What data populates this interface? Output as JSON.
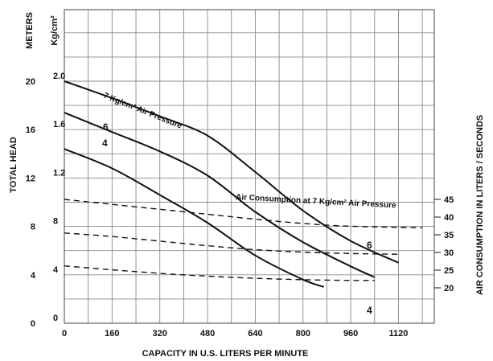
{
  "chart_data": {
    "type": "line",
    "xlabel": "CAPACITY IN U.S. LITERS PER MINUTE",
    "x_ticks": [
      0,
      160,
      320,
      480,
      640,
      800,
      960,
      1120
    ],
    "xlim": [
      0,
      1240
    ],
    "left_axis_meters": {
      "unit_label": "METERS",
      "title": "TOTAL HEAD",
      "ticks": [
        0,
        4,
        8,
        12,
        16,
        20
      ],
      "range": [
        0,
        20
      ]
    },
    "left_axis_pressure": {
      "unit_label": "Kg/cm²",
      "ticks": [
        "0",
        "4",
        "8",
        "1.2",
        "1.6",
        "2.0"
      ]
    },
    "right_axis": {
      "title": "AIR CONSUMPTION IN LITERS / SECONDS",
      "ticks": [
        20,
        25,
        30,
        35,
        40,
        45
      ],
      "range": [
        20,
        45
      ]
    },
    "head_series": [
      {
        "label": "7 Kg/cm² Air Pressure",
        "points": [
          [
            0,
            20.0
          ],
          [
            160,
            18.6
          ],
          [
            320,
            17.1
          ],
          [
            480,
            15.5
          ],
          [
            640,
            12.5
          ],
          [
            800,
            9.3
          ],
          [
            960,
            6.8
          ],
          [
            1120,
            5.0
          ]
        ]
      },
      {
        "label": "6",
        "points": [
          [
            0,
            17.4
          ],
          [
            160,
            15.8
          ],
          [
            320,
            14.2
          ],
          [
            480,
            12.2
          ],
          [
            640,
            9.2
          ],
          [
            800,
            6.7
          ],
          [
            960,
            4.7
          ],
          [
            1040,
            3.8
          ]
        ]
      },
      {
        "label": "4",
        "points": [
          [
            0,
            14.4
          ],
          [
            160,
            12.8
          ],
          [
            320,
            10.6
          ],
          [
            480,
            8.3
          ],
          [
            640,
            5.6
          ],
          [
            800,
            3.6
          ],
          [
            870,
            3.0
          ]
        ]
      }
    ],
    "air_series": [
      {
        "label": "Air Consumption at 7 Kg/cm² Air Pressure",
        "points": [
          [
            0,
            45
          ],
          [
            160,
            43.6
          ],
          [
            320,
            42.2
          ],
          [
            480,
            40.8
          ],
          [
            640,
            39.4
          ],
          [
            800,
            38.2
          ],
          [
            960,
            37.4
          ],
          [
            1200,
            37.0
          ]
        ]
      },
      {
        "label": "6",
        "points": [
          [
            0,
            35.5
          ],
          [
            160,
            34.5
          ],
          [
            320,
            33.2
          ],
          [
            480,
            31.9
          ],
          [
            640,
            30.8
          ],
          [
            800,
            30.1
          ],
          [
            960,
            29.7
          ],
          [
            1120,
            29.5
          ]
        ]
      },
      {
        "label": "4",
        "points": [
          [
            0,
            26.2
          ],
          [
            160,
            25.1
          ],
          [
            320,
            24.1
          ],
          [
            480,
            23.3
          ],
          [
            640,
            22.7
          ],
          [
            800,
            22.3
          ],
          [
            960,
            22.1
          ],
          [
            1040,
            22.1
          ]
        ]
      }
    ]
  }
}
